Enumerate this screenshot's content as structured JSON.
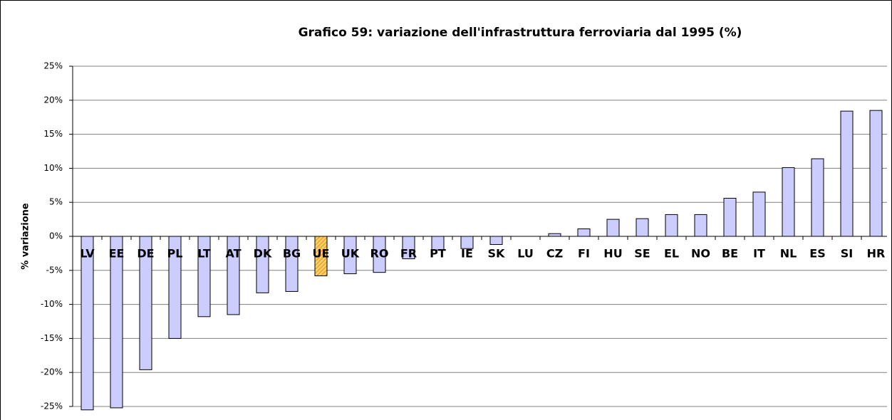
{
  "chart_data": {
    "type": "bar",
    "title": "Grafico 59: variazione dell'infrastruttura ferroviaria dal 1995 (%)",
    "y_label": "% variazione",
    "categories": [
      "LV",
      "EE",
      "DE",
      "PL",
      "LT",
      "AT",
      "DK",
      "BG",
      "UE",
      "UK",
      "RO",
      "FR",
      "PT",
      "IE",
      "SK",
      "LU",
      "CZ",
      "FI",
      "HU",
      "SE",
      "EL",
      "NO",
      "BE",
      "IT",
      "NL",
      "ES",
      "SI",
      "HR"
    ],
    "values": [
      -25.5,
      -25.2,
      -19.6,
      -15.0,
      -11.8,
      -11.5,
      -8.3,
      -8.1,
      -5.8,
      -5.5,
      -5.3,
      -3.3,
      -2.0,
      -1.8,
      -1.2,
      0,
      0.4,
      1.1,
      2.5,
      2.6,
      3.2,
      3.2,
      5.6,
      6.5,
      10.1,
      11.4,
      18.4,
      18.5
    ],
    "colors": [
      "#ccccff",
      "#ccccff",
      "#ccccff",
      "#ccccff",
      "#ccccff",
      "#ccccff",
      "#ccccff",
      "#ccccff",
      "#ffcc66",
      "#ccccff",
      "#ccccff",
      "#ccccff",
      "#ccccff",
      "#ccccff",
      "#ccccff",
      "#ccccff",
      "#ccccff",
      "#ccccff",
      "#ccccff",
      "#ccccff",
      "#ccccff",
      "#ccccff",
      "#ccccff",
      "#ccccff",
      "#ccccff",
      "#ccccff",
      "#ccccff",
      "#ccccff"
    ],
    "ylim": [
      -25,
      25
    ],
    "yticks": [
      {
        "value": -25,
        "label": "-25%"
      },
      {
        "value": -20,
        "label": "-20%"
      },
      {
        "value": -15,
        "label": "-15%"
      },
      {
        "value": -10,
        "label": "-10%"
      },
      {
        "value": -5,
        "label": "-5%"
      },
      {
        "value": 0,
        "label": "0%"
      },
      {
        "value": 5,
        "label": "5%"
      },
      {
        "value": 10,
        "label": "10%"
      },
      {
        "value": 15,
        "label": "15%"
      },
      {
        "value": 20,
        "label": "20%"
      },
      {
        "value": 25,
        "label": "25%"
      }
    ],
    "grid": true
  }
}
